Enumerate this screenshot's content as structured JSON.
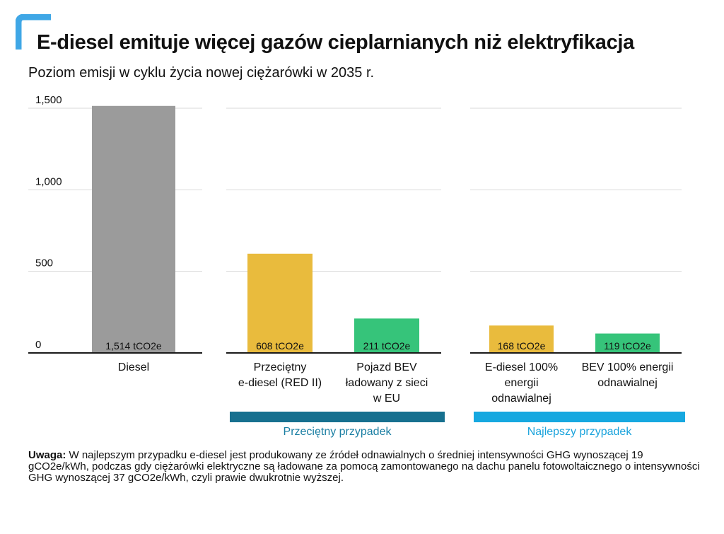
{
  "colors": {
    "accent": "#3fa7e6",
    "diesel": "#9b9b9b",
    "ediesel": "#e9bb3d",
    "bev": "#36c47a",
    "grid": "#d9d9d9",
    "axis": "#1a1a1a",
    "average_band": "#17708f",
    "best_band": "#16a8e0",
    "average_text": "#1b7fa3",
    "best_text": "#1aa3dc"
  },
  "header": {
    "title": "E-diesel emituje więcej gazów cieplarnianych niż elektryfikacja",
    "subtitle": "Poziom emisji w cyklu życia nowej ciężarówki w 2035 r."
  },
  "note": {
    "label": "Uwaga:",
    "text": "W najlepszym przypadku e-diesel jest produkowany ze źródeł odnawialnych o średniej intensywności GHG wynoszącej 19 gCO2e/kWh, podczas gdy ciężarówki elektryczne są ładowane za pomocą zamontowanego na dachu panelu fotowoltaicznego o intensywności GHG wynoszącej 37 gCO2e/kWh, czyli prawie dwukrotnie wyższej."
  },
  "chart_data": {
    "type": "bar",
    "ylim": [
      0,
      1500
    ],
    "yticks": [
      {
        "value": 0,
        "label": "0"
      },
      {
        "value": 500,
        "label": "500"
      },
      {
        "value": 1000,
        "label": "1,000"
      },
      {
        "value": 1500,
        "label": "1,500"
      }
    ],
    "grid": true,
    "panels": [
      {
        "group_label": "",
        "bars": [
          {
            "category": [
              "Diesel"
            ],
            "value": 1514,
            "label": "1,514 tCO2e",
            "color": "diesel"
          }
        ]
      },
      {
        "group_label": "Przeciętny przypadek",
        "bars": [
          {
            "category": [
              "Przeciętny",
              "e-diesel (RED II)"
            ],
            "value": 608,
            "label": "608 tCO2e",
            "color": "ediesel"
          },
          {
            "category": [
              "Pojazd BEV",
              "ładowany z sieci",
              "w EU"
            ],
            "value": 211,
            "label": "211 tCO2e",
            "color": "bev"
          }
        ]
      },
      {
        "group_label": "Najlepszy przypadek",
        "bars": [
          {
            "category": [
              "E-diesel 100%",
              "energii",
              "odnawialnej"
            ],
            "value": 168,
            "label": "168 tCO2e",
            "color": "ediesel"
          },
          {
            "category": [
              "BEV 100% energii",
              "odnawialnej"
            ],
            "value": 119,
            "label": "119 tCO2e",
            "color": "bev"
          }
        ]
      }
    ]
  }
}
